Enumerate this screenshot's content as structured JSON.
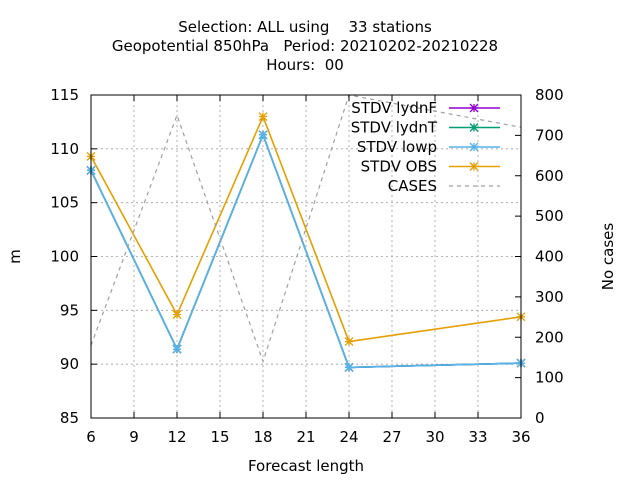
{
  "chart_data": {
    "type": "line",
    "title_lines": [
      "Selection: ALL using    33 stations",
      "Geopotential 850hPa   Period: 20210202-20210228",
      "Hours:  00"
    ],
    "xlabel": "Forecast length",
    "ylabel": "m",
    "y2label": "No cases",
    "xlim": [
      6,
      36
    ],
    "ylim": [
      85,
      115
    ],
    "y2lim": [
      0,
      800
    ],
    "xticks": [
      6,
      9,
      12,
      15,
      18,
      21,
      24,
      27,
      30,
      33,
      36
    ],
    "yticks": [
      85,
      90,
      95,
      100,
      105,
      110,
      115
    ],
    "y2ticks": [
      0,
      100,
      200,
      300,
      400,
      500,
      600,
      700,
      800
    ],
    "grid": true,
    "legend_position": "top-right",
    "x": [
      6,
      12,
      18,
      24,
      36
    ],
    "series": [
      {
        "name": "STDV lydnF",
        "color": "#9400d3",
        "axis": "y",
        "style": "line-points",
        "values": [
          108.0,
          91.4,
          111.3,
          89.7,
          90.1
        ]
      },
      {
        "name": "STDV lydnT",
        "color": "#009e73",
        "axis": "y",
        "style": "line-points",
        "values": [
          108.0,
          91.4,
          111.3,
          89.7,
          90.1
        ]
      },
      {
        "name": "STDV lowp",
        "color": "#56b4e9",
        "axis": "y",
        "style": "line-points",
        "values": [
          108.0,
          91.4,
          111.3,
          89.7,
          90.1
        ]
      },
      {
        "name": "STDV OBS",
        "color": "#e69f00",
        "axis": "y",
        "style": "line-points",
        "values": [
          109.3,
          94.6,
          113.0,
          92.1,
          94.4
        ]
      },
      {
        "name": "CASES",
        "color": "#a0a0a0",
        "axis": "y2",
        "style": "dashed",
        "values": [
          180,
          750,
          140,
          800,
          720
        ]
      }
    ]
  }
}
